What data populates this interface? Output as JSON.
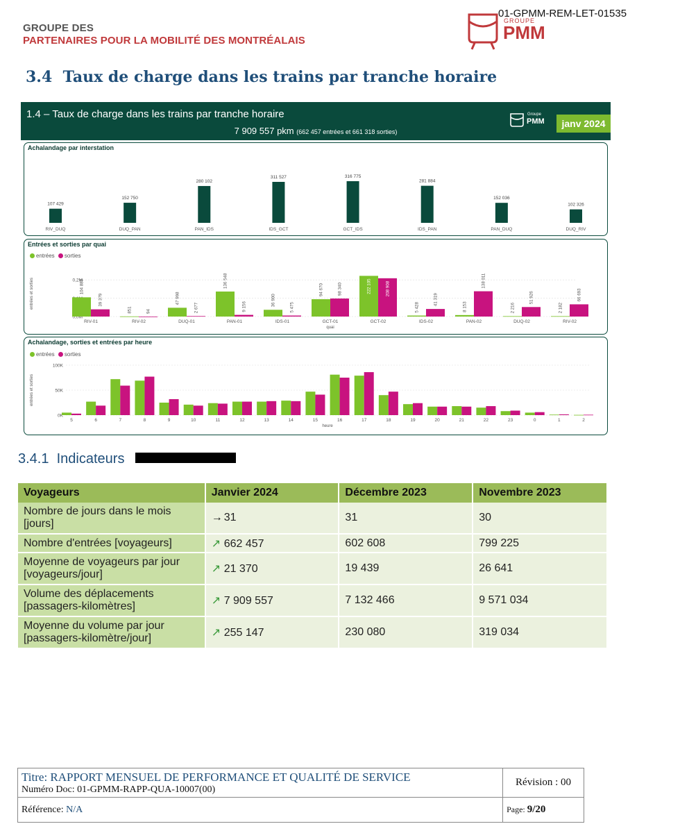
{
  "header": {
    "doc_code": "01-GPMM-REM-LET-01535",
    "org_line1": "GROUPE DES",
    "org_line2": "PARTENAIRES POUR LA MOBILITÉ DES MONTRÉALAIS",
    "logo_small": "GROUPE",
    "logo_big": "PMM"
  },
  "section": {
    "number": "3.4",
    "title": "Taux de charge dans les trains par tranche horaire"
  },
  "dashboard": {
    "title": "1.4 – Taux de charge dans les trains par tranche horaire",
    "total_value": "7 909 557 pkm",
    "total_detail": "(662 457 entrées et 661 318 sorties)",
    "logo_text": "PMM",
    "logo_sub": "Groupe",
    "month_badge": "janv 2024"
  },
  "chart_data": [
    {
      "type": "bar",
      "title": "Achalandage par interstation",
      "categories": [
        "RIV_DUQ",
        "DUQ_PAN",
        "PAN_IDS",
        "IDS_GCT",
        "GCT_IDS",
        "IDS_PAN",
        "PAN_DUQ",
        "DUQ_RIV"
      ],
      "values": [
        107429,
        152750,
        280102,
        311527,
        316775,
        281884,
        152036,
        102326
      ],
      "labels": [
        "107 429",
        "152 750",
        "280 102",
        "311 527",
        "316 775",
        "281 884",
        "152 036",
        "102 326"
      ],
      "color": "#0a4a3c"
    },
    {
      "type": "bar",
      "title": "Entrées et sorties par quai",
      "xlabel": "quai",
      "ylabel": "entrées et sorties",
      "ylim": [
        0,
        250000
      ],
      "yticks": [
        {
          "v": 0,
          "label": "0,0M"
        },
        {
          "v": 100000,
          "label": "0,1M"
        },
        {
          "v": 200000,
          "label": "0,2M"
        }
      ],
      "categories": [
        "RIV-01",
        "RIV-02",
        "DUQ-01",
        "PAN-01",
        "IDS-01",
        "GCT-01",
        "GCT-02",
        "IDS-02",
        "PAN-02",
        "DUQ-02",
        "RIV-02"
      ],
      "series": [
        {
          "name": "entrées",
          "color": "#7dc32a",
          "values": [
            104888,
            851,
            47998,
            136548,
            36900,
            94670,
            222105,
            5428,
            8153,
            2216,
            2182
          ],
          "labels": [
            "104 888",
            "851",
            "47 998",
            "136 548",
            "36 900",
            "94 670",
            "222 105",
            "5 428",
            "8 153",
            "2 216",
            "2 182"
          ]
        },
        {
          "name": "sorties",
          "color": "#c8137f",
          "values": [
            39379,
            94,
            2677,
            9156,
            5475,
            98340,
            208908,
            41319,
            138011,
            51926,
            66693
          ],
          "labels": [
            "39 379",
            "94",
            "2 677",
            "9 156",
            "5 475",
            "98 340",
            "208 908",
            "41 319",
            "138 011",
            "51 926",
            "66 693"
          ]
        }
      ]
    },
    {
      "type": "bar",
      "title": "Achalandage, sorties et entrées par heure",
      "xlabel": "heure",
      "ylabel": "entrées et sorties",
      "ylim": [
        0,
        100000
      ],
      "yticks": [
        {
          "v": 0,
          "label": "0K"
        },
        {
          "v": 50000,
          "label": "50K"
        },
        {
          "v": 100000,
          "label": "100K"
        }
      ],
      "categories": [
        "5",
        "6",
        "7",
        "8",
        "9",
        "10",
        "11",
        "12",
        "13",
        "14",
        "15",
        "16",
        "17",
        "18",
        "19",
        "20",
        "21",
        "22",
        "23",
        "0",
        "1",
        "2"
      ],
      "series": [
        {
          "name": "entrées",
          "color": "#7dc32a",
          "values": [
            5000,
            27000,
            72000,
            69000,
            25000,
            21000,
            24000,
            27000,
            27000,
            29000,
            47000,
            81000,
            79000,
            40000,
            22000,
            17000,
            18000,
            15000,
            8000,
            5000,
            1000,
            500
          ]
        },
        {
          "name": "sorties",
          "color": "#c8137f",
          "values": [
            3000,
            19000,
            59000,
            77000,
            32000,
            19000,
            23000,
            27000,
            28000,
            28000,
            41000,
            75000,
            86000,
            47000,
            24000,
            17000,
            17000,
            18000,
            9000,
            6000,
            1500,
            800
          ]
        }
      ]
    }
  ],
  "subsection": {
    "number": "3.4.1",
    "title": "Indicateurs"
  },
  "table": {
    "headers": [
      "Voyageurs",
      "Janvier 2024",
      "Décembre 2023",
      "Novembre 2023"
    ],
    "rows": [
      {
        "label": "Nombre de jours dans le mois [jours]",
        "trend": "→",
        "jan": "31",
        "dec": "31",
        "nov": "30"
      },
      {
        "label": "Nombre d'entrées [voyageurs]",
        "trend": "↗",
        "jan": "662 457",
        "dec": "602 608",
        "nov": "799 225"
      },
      {
        "label": "Moyenne de voyageurs par jour [voyageurs/jour]",
        "trend": "↗",
        "jan": "21 370",
        "dec": "19 439",
        "nov": "26 641"
      },
      {
        "label": "Volume des déplacements [passagers-kilomètres]",
        "trend": "↗",
        "jan": "7 909 557",
        "dec": "7 132 466",
        "nov": "9 571 034"
      },
      {
        "label": "Moyenne du volume par jour [passagers-kilomètre/jour]",
        "trend": "↗",
        "jan": "255 147",
        "dec": "230 080",
        "nov": "319 034"
      }
    ]
  },
  "footer": {
    "titre_label": "Titre:",
    "titre": "RAPPORT MENSUEL DE PERFORMANCE ET QUALITÉ DE SERVICE",
    "numero_label": "Numéro Doc:",
    "numero": "01-GPMM-RAPP-QUA-10007(00)",
    "revision": "Révision : 00",
    "reference_label": "Référence:",
    "reference": "N/A",
    "page_label": "Page:",
    "page": "9/20"
  }
}
